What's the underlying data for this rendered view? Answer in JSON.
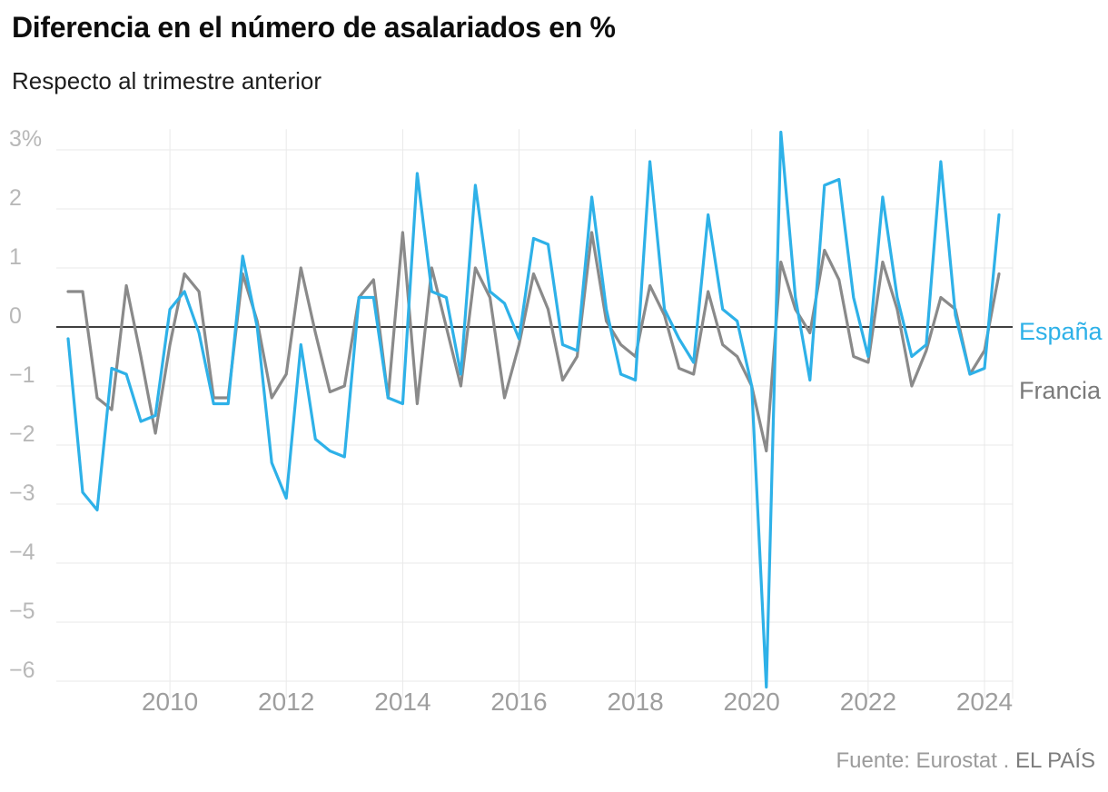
{
  "header": {
    "title": "Diferencia en el número de asalariados en %",
    "subtitle": "Respecto al trimestre anterior"
  },
  "footer": {
    "source": "Fuente: Eurostat",
    "separator": " . ",
    "brand": "EL PAÍS"
  },
  "chart_data": {
    "type": "line",
    "title": "Diferencia en el número de asalariados en %",
    "subtitle": "Respecto al trimestre anterior",
    "x_unit": "trimestre",
    "grid": true,
    "ylim": [
      -6.5,
      3.5
    ],
    "y_ticks": [
      3,
      2,
      1,
      0,
      -1,
      -2,
      -3,
      -4,
      -5,
      -6
    ],
    "y_tick_labels": [
      "3%",
      "2",
      "1",
      "0",
      "−1",
      "−2",
      "−3",
      "−4",
      "−5",
      "−6"
    ],
    "x_tick_labels": [
      "2010",
      "2012",
      "2014",
      "2016",
      "2018",
      "2020",
      "2022",
      "2024"
    ],
    "x": [
      "2008-T2",
      "2008-T3",
      "2008-T4",
      "2009-T1",
      "2009-T2",
      "2009-T3",
      "2009-T4",
      "2010-T1",
      "2010-T2",
      "2010-T3",
      "2010-T4",
      "2011-T1",
      "2011-T2",
      "2011-T3",
      "2011-T4",
      "2012-T1",
      "2012-T2",
      "2012-T3",
      "2012-T4",
      "2013-T1",
      "2013-T2",
      "2013-T3",
      "2013-T4",
      "2014-T1",
      "2014-T2",
      "2014-T3",
      "2014-T4",
      "2015-T1",
      "2015-T2",
      "2015-T3",
      "2015-T4",
      "2016-T1",
      "2016-T2",
      "2016-T3",
      "2016-T4",
      "2017-T1",
      "2017-T2",
      "2017-T3",
      "2017-T4",
      "2018-T1",
      "2018-T2",
      "2018-T3",
      "2018-T4",
      "2019-T1",
      "2019-T2",
      "2019-T3",
      "2019-T4",
      "2020-T1",
      "2020-T2",
      "2020-T3",
      "2020-T4",
      "2021-T1",
      "2021-T2",
      "2021-T3",
      "2021-T4",
      "2022-T1",
      "2022-T2",
      "2022-T3",
      "2022-T4",
      "2023-T1",
      "2023-T2",
      "2023-T3",
      "2023-T4",
      "2024-T1",
      "2024-T2"
    ],
    "series": [
      {
        "name": "España",
        "color": "#2eb1e8",
        "values": [
          -0.2,
          -2.8,
          -3.1,
          -0.7,
          -0.8,
          -1.6,
          -1.5,
          0.3,
          0.6,
          -0.1,
          -1.3,
          -1.3,
          1.2,
          0.0,
          -2.3,
          -2.9,
          -0.3,
          -1.9,
          -2.1,
          -2.2,
          0.5,
          0.5,
          -1.2,
          -1.3,
          2.6,
          0.6,
          0.5,
          -0.8,
          2.4,
          0.6,
          0.4,
          -0.2,
          1.5,
          1.4,
          -0.3,
          -0.4,
          2.2,
          0.3,
          -0.8,
          -0.9,
          2.8,
          0.3,
          -0.2,
          -0.6,
          1.9,
          0.3,
          0.1,
          -1.0,
          -6.1,
          3.3,
          0.5,
          -0.9,
          2.4,
          2.5,
          0.5,
          -0.5,
          2.2,
          0.5,
          -0.5,
          -0.3,
          2.8,
          0.2,
          -0.8,
          -0.7,
          1.9
        ]
      },
      {
        "name": "Francia",
        "color": "#8a8a8a",
        "values": [
          0.6,
          0.6,
          -1.2,
          -1.4,
          0.7,
          -0.5,
          -1.8,
          -0.3,
          0.9,
          0.6,
          -1.2,
          -1.2,
          0.9,
          0.1,
          -1.2,
          -0.8,
          1.0,
          -0.1,
          -1.1,
          -1.0,
          0.5,
          0.8,
          -1.2,
          1.6,
          -1.3,
          1.0,
          0.0,
          -1.0,
          1.0,
          0.5,
          -1.2,
          -0.3,
          0.9,
          0.3,
          -0.9,
          -0.5,
          1.6,
          0.1,
          -0.3,
          -0.5,
          0.7,
          0.2,
          -0.7,
          -0.8,
          0.6,
          -0.3,
          -0.5,
          -1.0,
          -2.1,
          1.1,
          0.3,
          -0.1,
          1.3,
          0.8,
          -0.5,
          -0.6,
          1.1,
          0.3,
          -1.0,
          -0.4,
          0.5,
          0.3,
          -0.8,
          -0.4,
          0.9
        ]
      }
    ],
    "legend_position": "right-end-labels",
    "zero_line_color": "#000000",
    "gridline_color": "#e9e9e9"
  }
}
